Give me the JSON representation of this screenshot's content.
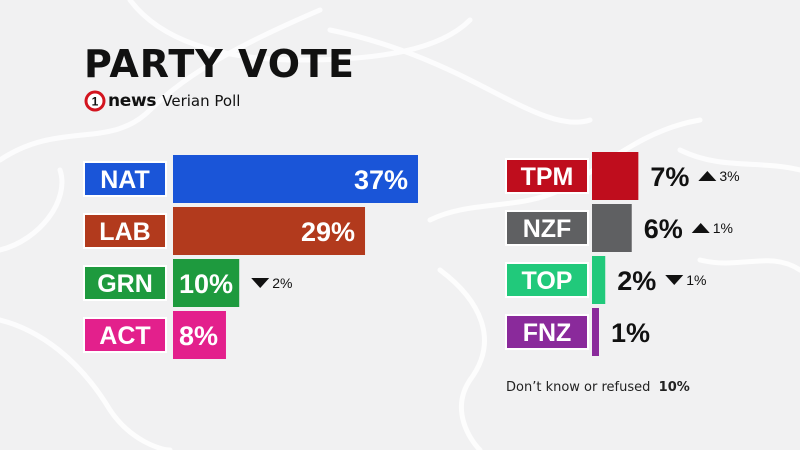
{
  "title": "PARTY VOTE",
  "source": {
    "brand_digit": "1",
    "brand": "news",
    "poll": "Verian Poll"
  },
  "chart_data": {
    "type": "bar",
    "orientation": "horizontal",
    "unit": "%",
    "groups": [
      {
        "bars": [
          {
            "label": "NAT",
            "value": 37,
            "value_label": "37%",
            "color": "#1a55d8",
            "change": null,
            "change_label": ""
          },
          {
            "label": "LAB",
            "value": 29,
            "value_label": "29%",
            "color": "#b23a1d",
            "change": null,
            "change_label": ""
          },
          {
            "label": "GRN",
            "value": 10,
            "value_label": "10%",
            "color": "#1e9a3e",
            "change": "down",
            "change_label": "2%"
          },
          {
            "label": "ACT",
            "value": 8,
            "value_label": "8%",
            "color": "#e3208c",
            "change": null,
            "change_label": ""
          }
        ]
      },
      {
        "bars": [
          {
            "label": "TPM",
            "value": 7,
            "value_label": "7%",
            "color": "#bf0d1d",
            "change": "up",
            "change_label": "3%"
          },
          {
            "label": "NZF",
            "value": 6,
            "value_label": "6%",
            "color": "#5f6062",
            "change": "up",
            "change_label": "1%"
          },
          {
            "label": "TOP",
            "value": 2,
            "value_label": "2%",
            "color": "#21c97b",
            "change": "down",
            "change_label": "1%"
          },
          {
            "label": "FNZ",
            "value": 1,
            "value_label": "1%",
            "color": "#8a2a9b",
            "change": null,
            "change_label": ""
          }
        ]
      }
    ]
  },
  "footnote": {
    "label": "Don’t know or refused",
    "value": "10%"
  }
}
